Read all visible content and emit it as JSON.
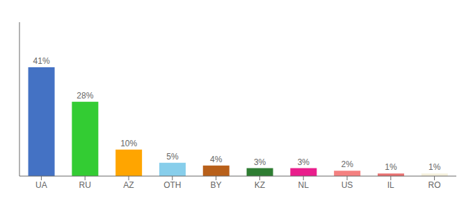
{
  "chart_data": {
    "type": "bar",
    "categories": [
      "UA",
      "RU",
      "AZ",
      "OTH",
      "BY",
      "KZ",
      "NL",
      "US",
      "IL",
      "RO"
    ],
    "values": [
      41,
      28,
      10,
      5,
      4,
      3,
      3,
      2,
      1,
      1
    ],
    "value_labels": [
      "41%",
      "28%",
      "10%",
      "5%",
      "4%",
      "3%",
      "3%",
      "2%",
      "1%",
      "1%"
    ],
    "colors": [
      "#4472c4",
      "#33cc33",
      "#ffa500",
      "#87ceeb",
      "#b8601a",
      "#2e7d32",
      "#e91e8c",
      "#f48080",
      "#e87070",
      "#f5f0dc"
    ],
    "ylim": [
      0,
      58
    ],
    "grid": false,
    "data_labels": true,
    "tick_labels": "x"
  }
}
